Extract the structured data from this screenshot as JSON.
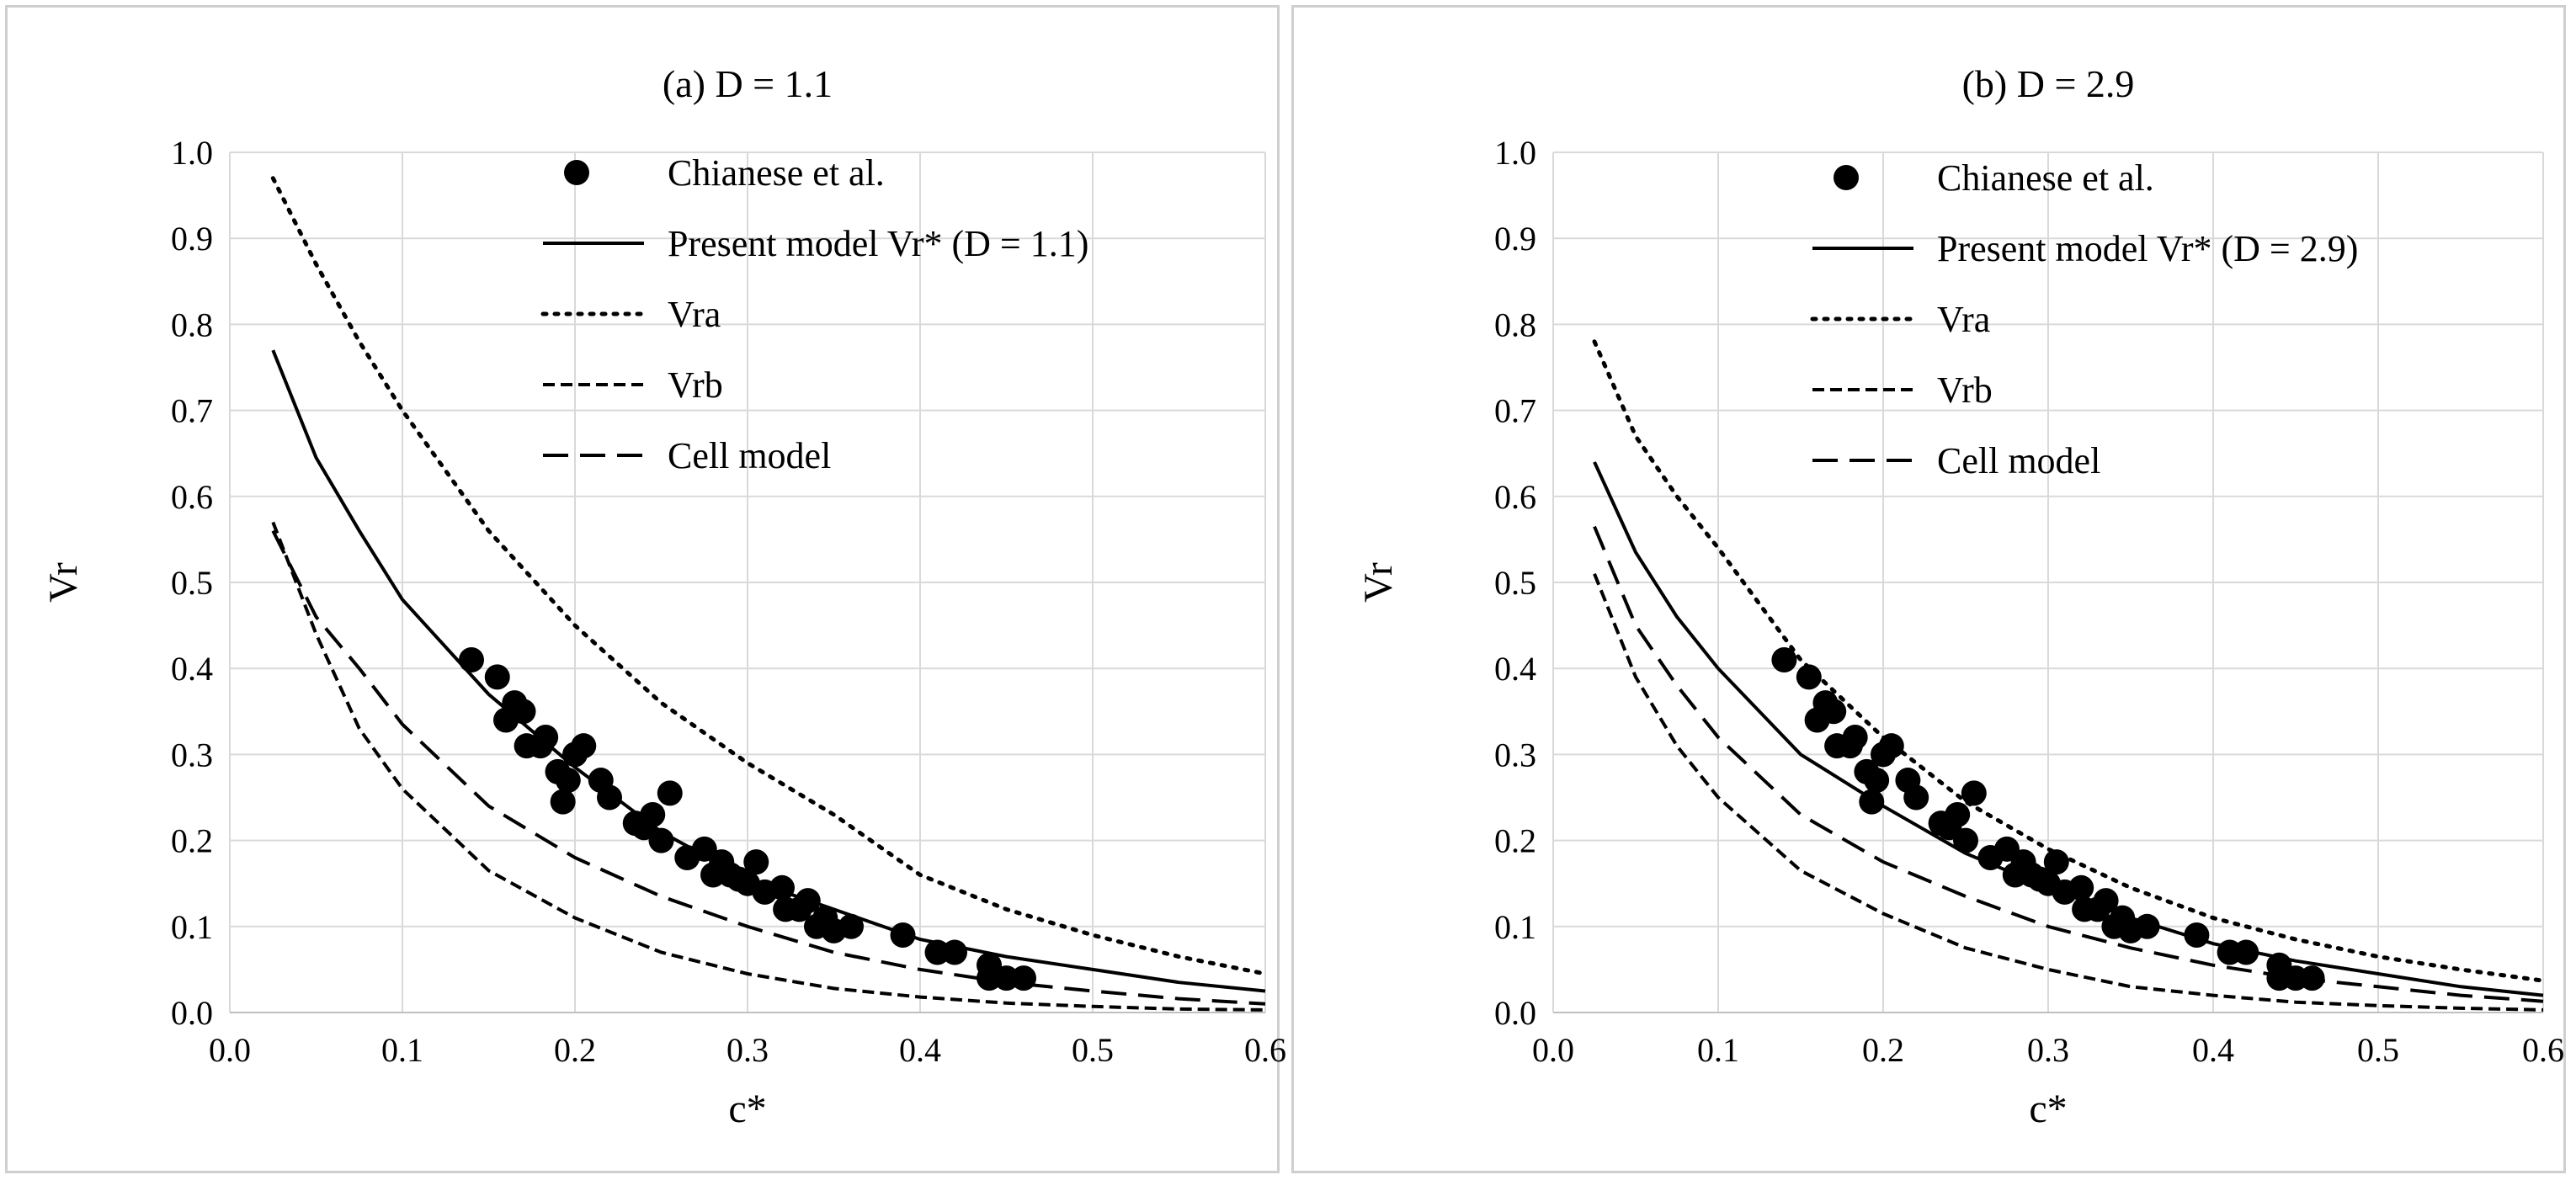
{
  "chart_data": [
    {
      "type": "scatter+line",
      "title": "(a) D = 1.1",
      "xlabel": "c*",
      "ylabel": "Vr",
      "xlim": [
        0.0,
        0.6
      ],
      "ylim": [
        0.0,
        1.0
      ],
      "xticks": [
        "0.0",
        "0.1",
        "0.2",
        "0.3",
        "0.4",
        "0.5",
        "0.6"
      ],
      "yticks": [
        "0.0",
        "0.1",
        "0.2",
        "0.3",
        "0.4",
        "0.5",
        "0.6",
        "0.7",
        "0.8",
        "0.9",
        "1.0"
      ],
      "grid": true,
      "legend_position": "top-right",
      "series": [
        {
          "name": "Chianese et al.",
          "style": "markers",
          "points": [
            [
              0.14,
              0.41
            ],
            [
              0.155,
              0.39
            ],
            [
              0.16,
              0.34
            ],
            [
              0.165,
              0.36
            ],
            [
              0.17,
              0.35
            ],
            [
              0.172,
              0.31
            ],
            [
              0.18,
              0.31
            ],
            [
              0.183,
              0.32
            ],
            [
              0.19,
              0.28
            ],
            [
              0.193,
              0.245
            ],
            [
              0.196,
              0.27
            ],
            [
              0.2,
              0.3
            ],
            [
              0.205,
              0.31
            ],
            [
              0.215,
              0.27
            ],
            [
              0.22,
              0.25
            ],
            [
              0.235,
              0.22
            ],
            [
              0.24,
              0.215
            ],
            [
              0.245,
              0.23
            ],
            [
              0.25,
              0.2
            ],
            [
              0.255,
              0.255
            ],
            [
              0.265,
              0.18
            ],
            [
              0.275,
              0.19
            ],
            [
              0.28,
              0.16
            ],
            [
              0.285,
              0.175
            ],
            [
              0.29,
              0.16
            ],
            [
              0.295,
              0.155
            ],
            [
              0.3,
              0.15
            ],
            [
              0.305,
              0.175
            ],
            [
              0.31,
              0.14
            ],
            [
              0.32,
              0.145
            ],
            [
              0.322,
              0.12
            ],
            [
              0.33,
              0.12
            ],
            [
              0.335,
              0.13
            ],
            [
              0.34,
              0.1
            ],
            [
              0.345,
              0.11
            ],
            [
              0.35,
              0.095
            ],
            [
              0.36,
              0.1
            ],
            [
              0.39,
              0.09
            ],
            [
              0.41,
              0.07
            ],
            [
              0.42,
              0.07
            ],
            [
              0.44,
              0.055
            ],
            [
              0.44,
              0.04
            ],
            [
              0.45,
              0.04
            ],
            [
              0.46,
              0.04
            ]
          ]
        },
        {
          "name": "Present model Vr* (D = 1.1)",
          "style": "solid",
          "x": [
            0.025,
            0.05,
            0.075,
            0.1,
            0.15,
            0.2,
            0.25,
            0.3,
            0.35,
            0.4,
            0.45,
            0.5,
            0.55,
            0.6
          ],
          "y": [
            0.77,
            0.645,
            0.56,
            0.48,
            0.37,
            0.285,
            0.21,
            0.155,
            0.12,
            0.085,
            0.065,
            0.05,
            0.035,
            0.025
          ]
        },
        {
          "name": "Vra",
          "style": "dotted",
          "x": [
            0.025,
            0.05,
            0.075,
            0.1,
            0.15,
            0.2,
            0.25,
            0.3,
            0.35,
            0.4,
            0.45,
            0.5,
            0.55,
            0.6
          ],
          "y": [
            0.97,
            0.87,
            0.78,
            0.7,
            0.56,
            0.45,
            0.36,
            0.29,
            0.23,
            0.16,
            0.12,
            0.09,
            0.065,
            0.045
          ]
        },
        {
          "name": "Vrb",
          "style": "short-dash",
          "x": [
            0.025,
            0.05,
            0.075,
            0.1,
            0.15,
            0.2,
            0.25,
            0.3,
            0.35,
            0.4,
            0.45,
            0.5,
            0.55,
            0.6
          ],
          "y": [
            0.57,
            0.44,
            0.33,
            0.26,
            0.165,
            0.11,
            0.07,
            0.045,
            0.028,
            0.018,
            0.011,
            0.007,
            0.004,
            0.003
          ]
        },
        {
          "name": "Cell model",
          "style": "long-dash",
          "x": [
            0.025,
            0.05,
            0.075,
            0.1,
            0.15,
            0.2,
            0.25,
            0.3,
            0.35,
            0.4,
            0.45,
            0.5,
            0.55,
            0.6
          ],
          "y": [
            0.56,
            0.46,
            0.4,
            0.335,
            0.24,
            0.18,
            0.135,
            0.1,
            0.07,
            0.05,
            0.035,
            0.025,
            0.016,
            0.01
          ]
        }
      ]
    },
    {
      "type": "scatter+line",
      "title": "(b) D = 2.9",
      "xlabel": "c*",
      "ylabel": "Vr",
      "xlim": [
        0.0,
        0.6
      ],
      "ylim": [
        0.0,
        1.0
      ],
      "xticks": [
        "0.0",
        "0.1",
        "0.2",
        "0.3",
        "0.4",
        "0.5",
        "0.6"
      ],
      "yticks": [
        "0.0",
        "0.1",
        "0.2",
        "0.3",
        "0.4",
        "0.5",
        "0.6",
        "0.7",
        "0.8",
        "0.9",
        "1.0"
      ],
      "grid": true,
      "legend_position": "top-right",
      "series": [
        {
          "name": "Chianese et al.",
          "style": "markers",
          "points": [
            [
              0.14,
              0.41
            ],
            [
              0.155,
              0.39
            ],
            [
              0.16,
              0.34
            ],
            [
              0.165,
              0.36
            ],
            [
              0.17,
              0.35
            ],
            [
              0.172,
              0.31
            ],
            [
              0.18,
              0.31
            ],
            [
              0.183,
              0.32
            ],
            [
              0.19,
              0.28
            ],
            [
              0.193,
              0.245
            ],
            [
              0.196,
              0.27
            ],
            [
              0.2,
              0.3
            ],
            [
              0.205,
              0.31
            ],
            [
              0.215,
              0.27
            ],
            [
              0.22,
              0.25
            ],
            [
              0.235,
              0.22
            ],
            [
              0.24,
              0.215
            ],
            [
              0.245,
              0.23
            ],
            [
              0.25,
              0.2
            ],
            [
              0.255,
              0.255
            ],
            [
              0.265,
              0.18
            ],
            [
              0.275,
              0.19
            ],
            [
              0.28,
              0.16
            ],
            [
              0.285,
              0.175
            ],
            [
              0.29,
              0.16
            ],
            [
              0.295,
              0.155
            ],
            [
              0.3,
              0.15
            ],
            [
              0.305,
              0.175
            ],
            [
              0.31,
              0.14
            ],
            [
              0.32,
              0.145
            ],
            [
              0.322,
              0.12
            ],
            [
              0.33,
              0.12
            ],
            [
              0.335,
              0.13
            ],
            [
              0.34,
              0.1
            ],
            [
              0.345,
              0.11
            ],
            [
              0.35,
              0.095
            ],
            [
              0.36,
              0.1
            ],
            [
              0.39,
              0.09
            ],
            [
              0.41,
              0.07
            ],
            [
              0.42,
              0.07
            ],
            [
              0.44,
              0.055
            ],
            [
              0.44,
              0.04
            ],
            [
              0.45,
              0.04
            ],
            [
              0.46,
              0.04
            ]
          ]
        },
        {
          "name": "Present model Vr* (D = 2.9)",
          "style": "solid",
          "x": [
            0.025,
            0.05,
            0.075,
            0.1,
            0.15,
            0.2,
            0.25,
            0.3,
            0.35,
            0.4,
            0.45,
            0.5,
            0.55,
            0.6
          ],
          "y": [
            0.64,
            0.535,
            0.46,
            0.4,
            0.3,
            0.24,
            0.185,
            0.145,
            0.11,
            0.08,
            0.06,
            0.045,
            0.03,
            0.02
          ]
        },
        {
          "name": "Vra",
          "style": "dotted",
          "x": [
            0.025,
            0.05,
            0.075,
            0.1,
            0.15,
            0.2,
            0.25,
            0.3,
            0.35,
            0.4,
            0.45,
            0.5,
            0.55,
            0.6
          ],
          "y": [
            0.78,
            0.67,
            0.6,
            0.54,
            0.41,
            0.32,
            0.245,
            0.19,
            0.145,
            0.11,
            0.085,
            0.065,
            0.05,
            0.037
          ]
        },
        {
          "name": "Vrb",
          "style": "short-dash",
          "x": [
            0.025,
            0.05,
            0.075,
            0.1,
            0.15,
            0.2,
            0.25,
            0.3,
            0.35,
            0.4,
            0.45,
            0.5,
            0.55,
            0.6
          ],
          "y": [
            0.51,
            0.39,
            0.31,
            0.25,
            0.165,
            0.115,
            0.075,
            0.05,
            0.03,
            0.02,
            0.012,
            0.008,
            0.005,
            0.003
          ]
        },
        {
          "name": "Cell model",
          "style": "long-dash",
          "x": [
            0.025,
            0.05,
            0.075,
            0.1,
            0.15,
            0.2,
            0.25,
            0.3,
            0.35,
            0.4,
            0.45,
            0.5,
            0.55,
            0.6
          ],
          "y": [
            0.565,
            0.45,
            0.38,
            0.32,
            0.23,
            0.175,
            0.135,
            0.1,
            0.075,
            0.055,
            0.04,
            0.03,
            0.02,
            0.013
          ]
        }
      ]
    }
  ]
}
